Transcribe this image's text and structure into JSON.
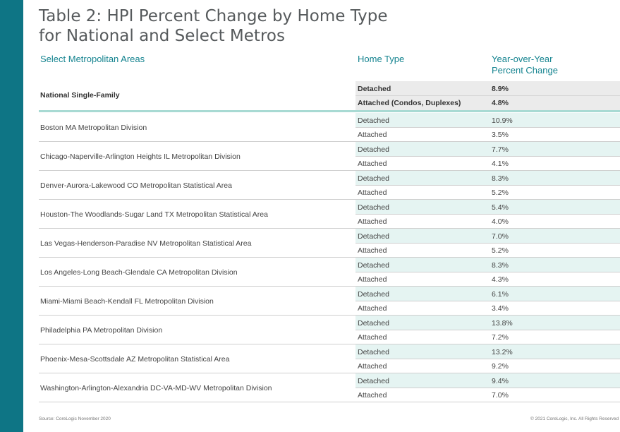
{
  "title_line1": "Table 2: HPI Percent Change by Home Type",
  "title_line2": "for National and Select Metros",
  "headers": {
    "metro": "Select Metropolitan Areas",
    "home_type": "Home Type",
    "yoy_line1": "Year-over-Year",
    "yoy_line2": "Percent Change"
  },
  "national": {
    "name": "National Single-Family",
    "rows": [
      {
        "type": "Detached",
        "value": "8.9%"
      },
      {
        "type": "Attached (Condos, Duplexes)",
        "value": "4.8%"
      }
    ]
  },
  "metros": [
    {
      "name": "Boston MA Metropolitan Division",
      "detached": "10.9%",
      "attached": "3.5%"
    },
    {
      "name": "Chicago-Naperville-Arlington Heights IL Metropolitan Division",
      "detached": "7.7%",
      "attached": "4.1%"
    },
    {
      "name": "Denver-Aurora-Lakewood CO Metropolitan Statistical Area",
      "detached": "8.3%",
      "attached": "5.2%"
    },
    {
      "name": "Houston-The Woodlands-Sugar Land TX Metropolitan Statistical Area",
      "detached": "5.4%",
      "attached": "4.0%"
    },
    {
      "name": "Las Vegas-Henderson-Paradise NV Metropolitan Statistical Area",
      "detached": "7.0%",
      "attached": "5.2%"
    },
    {
      "name": "Los Angeles-Long Beach-Glendale CA Metropolitan Division",
      "detached": "8.3%",
      "attached": "4.3%"
    },
    {
      "name": "Miami-Miami Beach-Kendall FL Metropolitan Division",
      "detached": "6.1%",
      "attached": "3.4%"
    },
    {
      "name": "Philadelphia PA Metropolitan Division",
      "detached": "13.8%",
      "attached": "7.2%"
    },
    {
      "name": "Phoenix-Mesa-Scottsdale AZ Metropolitan Statistical Area",
      "detached": "13.2%",
      "attached": "9.2%"
    },
    {
      "name": "Washington-Arlington-Alexandria DC-VA-MD-WV Metropolitan Division",
      "detached": "9.4%",
      "attached": "7.0%"
    }
  ],
  "row_labels": {
    "detached": "Detached",
    "attached": "Attached"
  },
  "footer": {
    "source": "Source: CoreLogic November 2020",
    "copyright": "© 2021 CoreLogic, Inc. All Rights Reserved"
  },
  "colors": {
    "accent": "#0e7585",
    "header_text": "#14838f",
    "teal_shade": "#e5f4f2",
    "divider": "#a8dad3"
  }
}
